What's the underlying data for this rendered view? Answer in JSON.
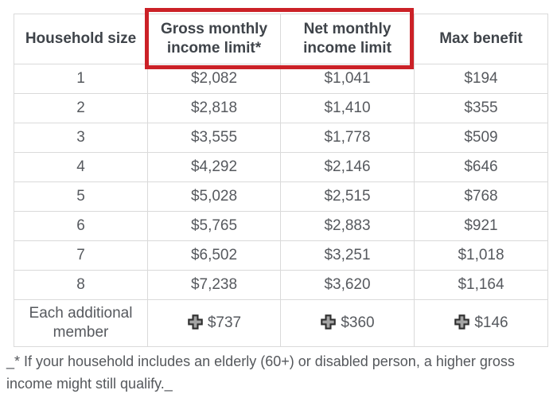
{
  "table": {
    "columns": [
      "Household size",
      "Gross monthly income limit*",
      "Net monthly income limit",
      "Max benefit"
    ],
    "rows": [
      {
        "household_size": "1",
        "gross": "$2,082",
        "net": "$1,041",
        "max_benefit": "$194",
        "plus": false
      },
      {
        "household_size": "2",
        "gross": "$2,818",
        "net": "$1,410",
        "max_benefit": "$355",
        "plus": false
      },
      {
        "household_size": "3",
        "gross": "$3,555",
        "net": "$1,778",
        "max_benefit": "$509",
        "plus": false
      },
      {
        "household_size": "4",
        "gross": "$4,292",
        "net": "$2,146",
        "max_benefit": "$646",
        "plus": false
      },
      {
        "household_size": "5",
        "gross": "$5,028",
        "net": "$2,515",
        "max_benefit": "$768",
        "plus": false
      },
      {
        "household_size": "6",
        "gross": "$5,765",
        "net": "$2,883",
        "max_benefit": "$921",
        "plus": false
      },
      {
        "household_size": "7",
        "gross": "$6,502",
        "net": "$3,251",
        "max_benefit": "$1,018",
        "plus": false
      },
      {
        "household_size": "8",
        "gross": "$7,238",
        "net": "$3,620",
        "max_benefit": "$1,164",
        "plus": false
      },
      {
        "household_size": "Each additional member",
        "gross": "$737",
        "net": "$360",
        "max_benefit": "$146",
        "plus": true
      }
    ]
  },
  "highlight": {
    "border_color": "#cb2127",
    "highlighted_columns": [
      "Gross monthly income limit*",
      "Net monthly income limit"
    ]
  },
  "icons": {
    "plus": "✚"
  },
  "colors": {
    "header_text": "#3f444a",
    "cell_text": "#56595e",
    "table_border": "#dadada"
  },
  "footnote": "_* If your household includes an elderly (60+) or disabled person, a higher gross income might still qualify._"
}
